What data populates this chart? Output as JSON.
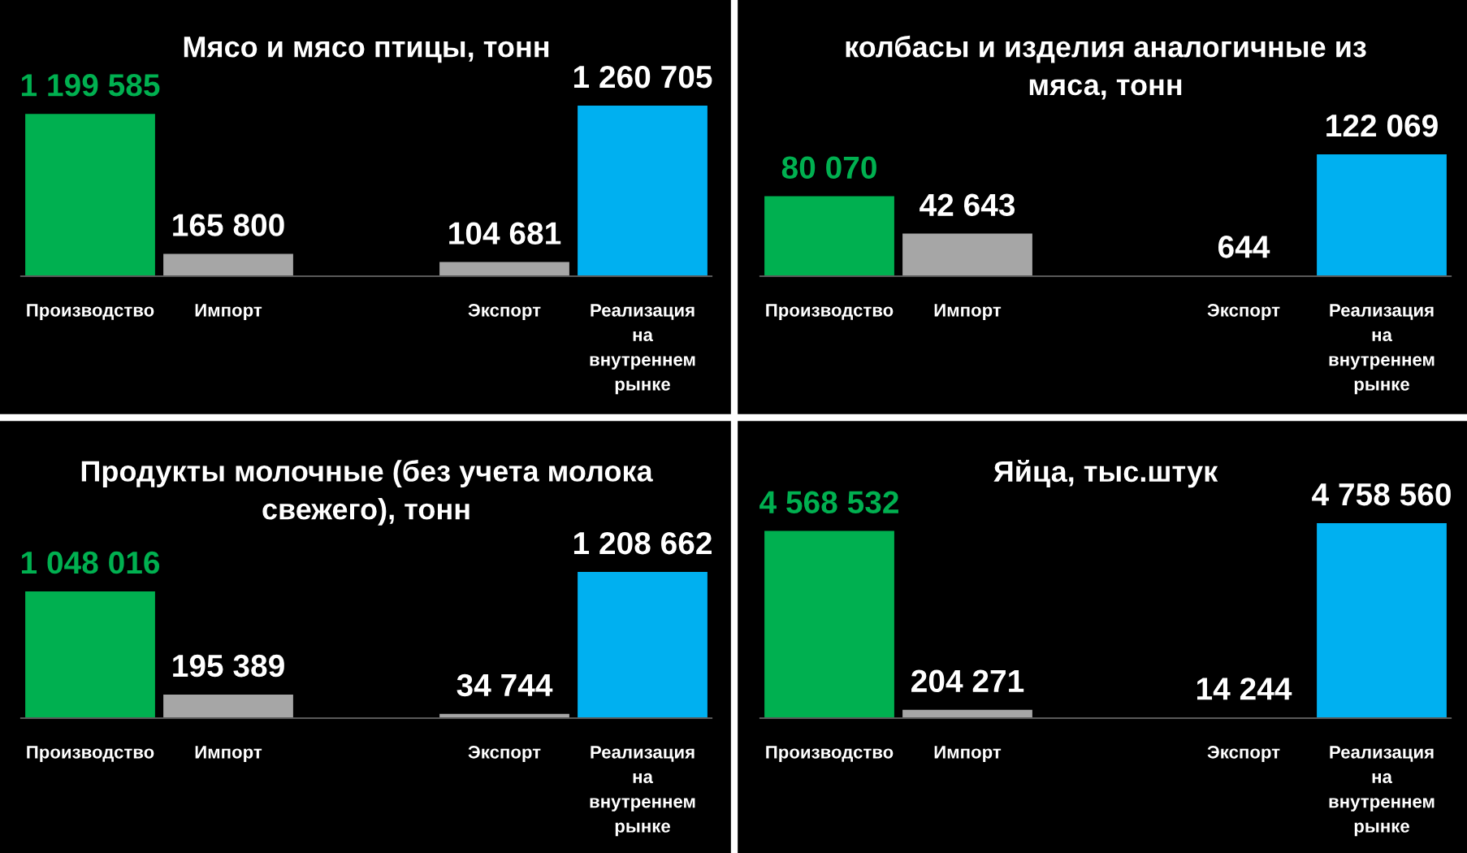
{
  "chart_data": [
    {
      "type": "bar",
      "title": "Мясо и мясо птицы, тонн",
      "relative": false,
      "tick_labels": "x",
      "categories": [
        "Производство",
        "Импорт",
        null,
        "Экспорт",
        "Реализация\nна\nвнутреннем\nрынке"
      ],
      "values": [
        1199585,
        165800,
        null,
        104681,
        1260705
      ],
      "colors": [
        "#00b050",
        "#a6a6a6",
        "#a6a6a6",
        "#a6a6a6",
        "#00b0f0"
      ],
      "value_labels": [
        "1 199 585",
        "165 800",
        null,
        "104 681",
        "1 260 705"
      ]
    },
    {
      "type": "bar",
      "title": "колбасы и изделия аналогичные из\nмяса, тонн",
      "relative": false,
      "tick_labels": "x",
      "categories": [
        "Производство",
        "Импорт",
        null,
        "Экспорт",
        "Реализация\nна\nвнутреннем\nрынке"
      ],
      "values": [
        80070,
        42643,
        null,
        644,
        122069
      ],
      "colors": [
        "#00b050",
        "#a6a6a6",
        "#a6a6a6",
        "#a6a6a6",
        "#00b0f0"
      ],
      "value_labels": [
        "80 070",
        "42 643",
        null,
        "644",
        "122 069"
      ]
    },
    {
      "type": "bar",
      "title": "Продукты молочные (без учета молока\nсвежего), тонн",
      "relative": false,
      "tick_labels": "x",
      "categories": [
        "Производство",
        "Импорт",
        null,
        "Экспорт",
        "Реализация\nна\nвнутреннем\nрынке"
      ],
      "values": [
        1048016,
        195389,
        null,
        34744,
        1208662
      ],
      "colors": [
        "#00b050",
        "#a6a6a6",
        "#a6a6a6",
        "#a6a6a6",
        "#00b0f0"
      ],
      "value_labels": [
        "1 048 016",
        "195 389",
        null,
        "34 744",
        "1 208 662"
      ]
    },
    {
      "type": "bar",
      "title": "Яйца, тыс.штук",
      "relative": false,
      "tick_labels": "x",
      "categories": [
        "Производство",
        "Импорт",
        null,
        "Экспорт",
        "Реализация\nна\nвнутреннем\nрынке"
      ],
      "values": [
        4568532,
        204271,
        null,
        14244,
        4758560
      ],
      "colors": [
        "#00b050",
        "#a6a6a6",
        "#a6a6a6",
        "#a6a6a6",
        "#00b0f0"
      ],
      "value_labels": [
        "4 568 532",
        "204 271",
        null,
        "14 244",
        "4 758 560"
      ]
    }
  ]
}
